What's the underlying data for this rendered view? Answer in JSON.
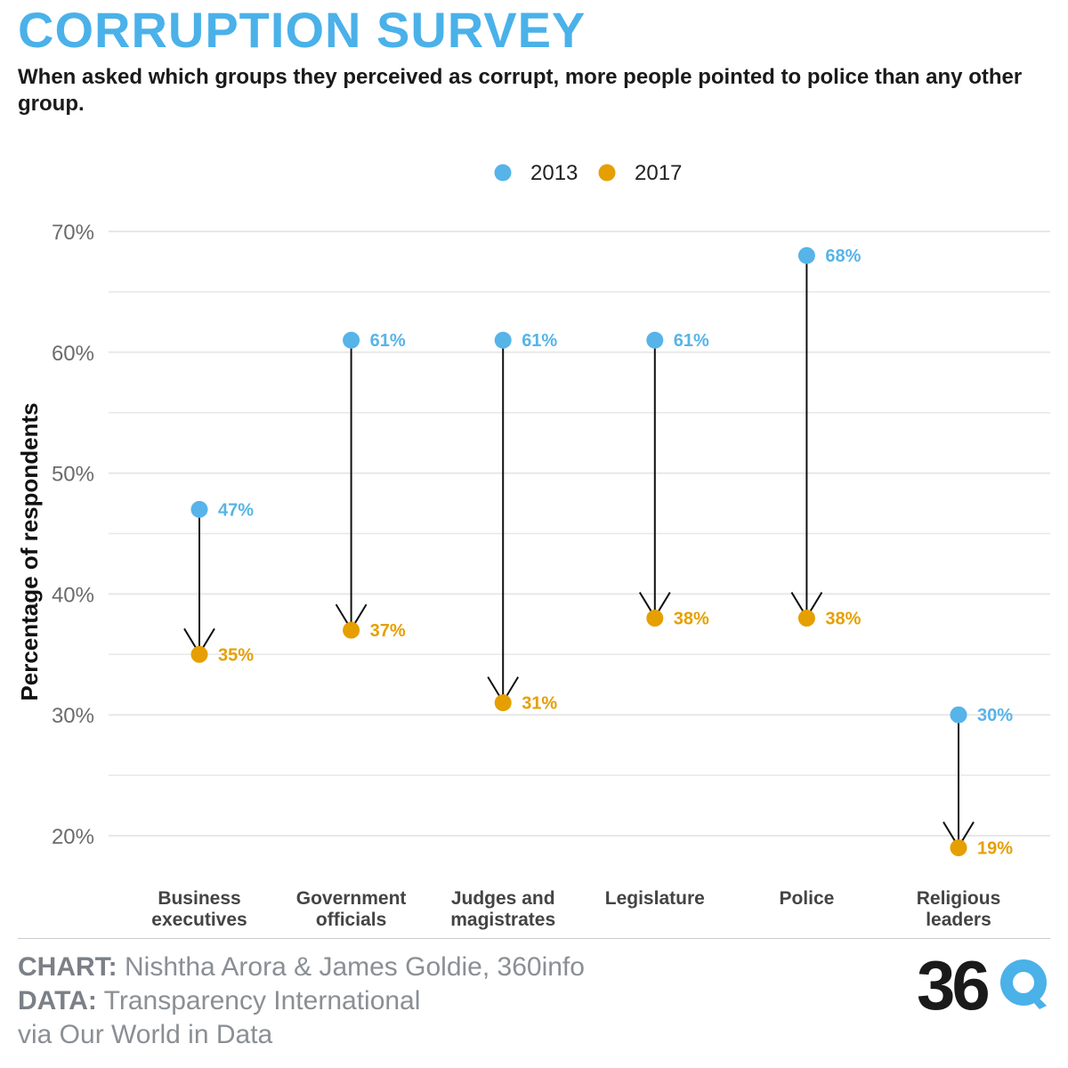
{
  "header": {
    "title": "CORRUPTION SURVEY",
    "subtitle": "When asked which groups they perceived as corrupt, more people pointed to police than any other group."
  },
  "footer": {
    "chart_label": "CHART:",
    "chart_credit": "Nishtha Arora & James Goldie, 360info",
    "data_label": "DATA:",
    "data_credit": "Transparency International",
    "data_credit_2": "via Our World in Data",
    "logo_text": "360"
  },
  "colors": {
    "series_2013": "#56b4e9",
    "series_2017": "#e69f00",
    "title": "#4ab1e9",
    "gridline": "#e6e6e6",
    "axis_text": "#6b6b6b",
    "arrow": "#111111"
  },
  "chart_data": {
    "type": "scatter",
    "ylabel": "Percentage of respondents",
    "xlabel": "",
    "ylim": [
      17,
      71
    ],
    "yticks": [
      20,
      30,
      40,
      50,
      60,
      70
    ],
    "ytick_labels": [
      "20%",
      "30%",
      "40%",
      "50%",
      "60%",
      "70%"
    ],
    "legend_position": "top-center",
    "grid": true,
    "categories": [
      [
        "Business",
        "executives"
      ],
      [
        "Government",
        "officials"
      ],
      [
        "Judges and",
        "magistrates"
      ],
      [
        "Legislature"
      ],
      [
        "Police"
      ],
      [
        "Religious",
        "leaders"
      ]
    ],
    "series": [
      {
        "name": "2013",
        "values": [
          47,
          61,
          61,
          61,
          68,
          30
        ],
        "labels": [
          "47%",
          "61%",
          "61%",
          "61%",
          "68%",
          "30%"
        ]
      },
      {
        "name": "2017",
        "values": [
          35,
          37,
          31,
          38,
          38,
          19
        ],
        "labels": [
          "35%",
          "37%",
          "31%",
          "38%",
          "38%",
          "19%"
        ]
      }
    ],
    "annotation": "arrows from 2013 value down to 2017 value"
  }
}
